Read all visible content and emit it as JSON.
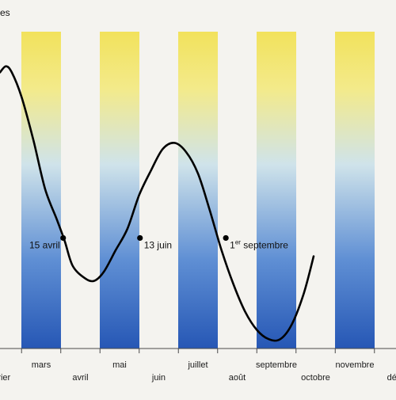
{
  "chart_data": {
    "type": "line",
    "ylabel_partial": "es",
    "months": [
      {
        "label": "vrier",
        "row": "lower"
      },
      {
        "label": "mars",
        "row": "upper"
      },
      {
        "label": "avril",
        "row": "lower"
      },
      {
        "label": "mai",
        "row": "upper"
      },
      {
        "label": "juin",
        "row": "lower"
      },
      {
        "label": "juillet",
        "row": "upper"
      },
      {
        "label": "août",
        "row": "lower"
      },
      {
        "label": "septembre",
        "row": "upper"
      },
      {
        "label": "octobre",
        "row": "lower"
      },
      {
        "label": "novembre",
        "row": "upper"
      },
      {
        "label": "déc",
        "row": "lower"
      }
    ],
    "x_range_months": [
      1.45,
      11.55
    ],
    "y_range": [
      0,
      1
    ],
    "shaded_month_bands": [
      "mars",
      "mai",
      "juillet",
      "septembre",
      "novembre"
    ],
    "band_gradient": {
      "top": "#f2e25c",
      "middle": "#cfe3ea",
      "bottom": "#2657b5"
    },
    "curve": {
      "color": "#000000",
      "points": [
        [
          1.45,
          0.88
        ],
        [
          1.6,
          0.9
        ],
        [
          1.75,
          0.88
        ],
        [
          2.0,
          0.8
        ],
        [
          2.3,
          0.66
        ],
        [
          2.6,
          0.5
        ],
        [
          2.9,
          0.4
        ],
        [
          3.1,
          0.33
        ],
        [
          3.3,
          0.25
        ],
        [
          3.6,
          0.21
        ],
        [
          3.85,
          0.2
        ],
        [
          4.1,
          0.23
        ],
        [
          4.4,
          0.3
        ],
        [
          4.7,
          0.37
        ],
        [
          5.0,
          0.48
        ],
        [
          5.3,
          0.56
        ],
        [
          5.6,
          0.63
        ],
        [
          5.9,
          0.65
        ],
        [
          6.2,
          0.62
        ],
        [
          6.5,
          0.55
        ],
        [
          6.8,
          0.43
        ],
        [
          7.1,
          0.3
        ],
        [
          7.4,
          0.19
        ],
        [
          7.7,
          0.1
        ],
        [
          8.0,
          0.04
        ],
        [
          8.3,
          0.01
        ],
        [
          8.6,
          0.01
        ],
        [
          8.9,
          0.06
        ],
        [
          9.2,
          0.16
        ],
        [
          9.45,
          0.28
        ]
      ]
    },
    "marked_points": [
      {
        "x": 3.06,
        "y": 0.34,
        "label": "15 avril",
        "label_side": "left"
      },
      {
        "x": 5.02,
        "y": 0.34,
        "label": "13 juin",
        "label_side": "right"
      },
      {
        "x": 7.21,
        "y": 0.34,
        "label": "1",
        "label_sup": "er",
        "label_rest": " septembre",
        "label_side": "right"
      }
    ]
  },
  "colors": {
    "background": "#f4f3ef",
    "axis": "#4a4a4a",
    "text": "#111111"
  }
}
